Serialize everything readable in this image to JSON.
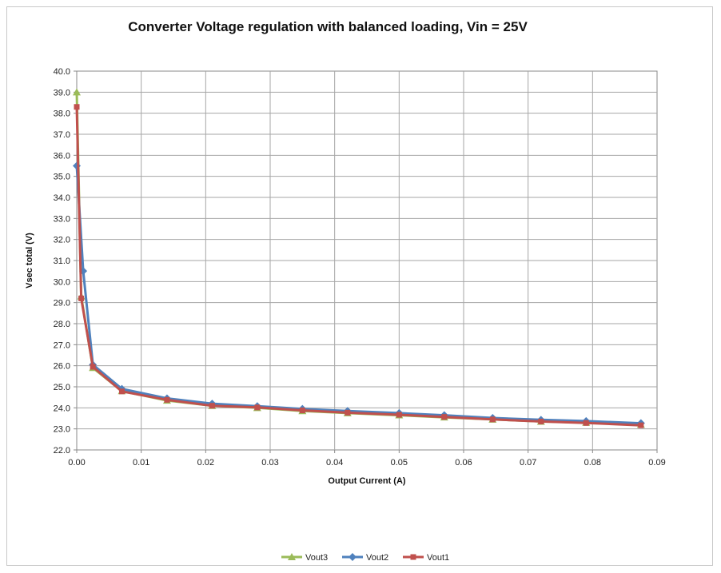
{
  "chart_data": {
    "type": "line",
    "title": "Converter Voltage regulation with balanced loading, Vin = 25V",
    "xlabel": "Output Current (A)",
    "ylabel": "Vsec total  (V)",
    "xlim": [
      0,
      0.09
    ],
    "ylim": [
      22.0,
      40.0
    ],
    "x_ticks": [
      "0.00",
      "0.01",
      "0.02",
      "0.03",
      "0.04",
      "0.05",
      "0.06",
      "0.07",
      "0.08",
      "0.09"
    ],
    "y_ticks": [
      "22.0",
      "23.0",
      "24.0",
      "25.0",
      "26.0",
      "27.0",
      "28.0",
      "29.0",
      "30.0",
      "31.0",
      "32.0",
      "33.0",
      "34.0",
      "35.0",
      "36.0",
      "37.0",
      "38.0",
      "39.0",
      "40.0"
    ],
    "grid": true,
    "legend_position": "bottom",
    "series": [
      {
        "name": "Vout3",
        "color": "#9bbb59",
        "marker": "triangle",
        "x": [
          0,
          0.0007,
          0.0025,
          0.007,
          0.014,
          0.021,
          0.028,
          0.035,
          0.042,
          0.05,
          0.057,
          0.0645,
          0.072,
          0.079,
          0.0875
        ],
        "y": [
          39.0,
          29.3,
          25.9,
          24.8,
          24.35,
          24.1,
          24.0,
          23.85,
          23.75,
          23.65,
          23.55,
          23.45,
          23.35,
          23.3,
          23.2
        ]
      },
      {
        "name": "Vout2",
        "color": "#4f81bd",
        "marker": "diamond",
        "x": [
          0,
          0.001,
          0.0025,
          0.007,
          0.014,
          0.021,
          0.028,
          0.035,
          0.042,
          0.05,
          0.057,
          0.0645,
          0.072,
          0.079,
          0.0875
        ],
        "y": [
          35.5,
          30.5,
          26.05,
          24.9,
          24.45,
          24.2,
          24.08,
          23.95,
          23.85,
          23.75,
          23.65,
          23.52,
          23.43,
          23.37,
          23.27
        ]
      },
      {
        "name": "Vout1",
        "color": "#c0504d",
        "marker": "square",
        "x": [
          0,
          0.0007,
          0.0025,
          0.007,
          0.014,
          0.021,
          0.028,
          0.035,
          0.042,
          0.05,
          0.057,
          0.0645,
          0.072,
          0.079,
          0.0875
        ],
        "y": [
          38.3,
          29.2,
          25.95,
          24.78,
          24.38,
          24.1,
          24.02,
          23.88,
          23.77,
          23.67,
          23.57,
          23.45,
          23.35,
          23.28,
          23.17
        ]
      }
    ]
  }
}
